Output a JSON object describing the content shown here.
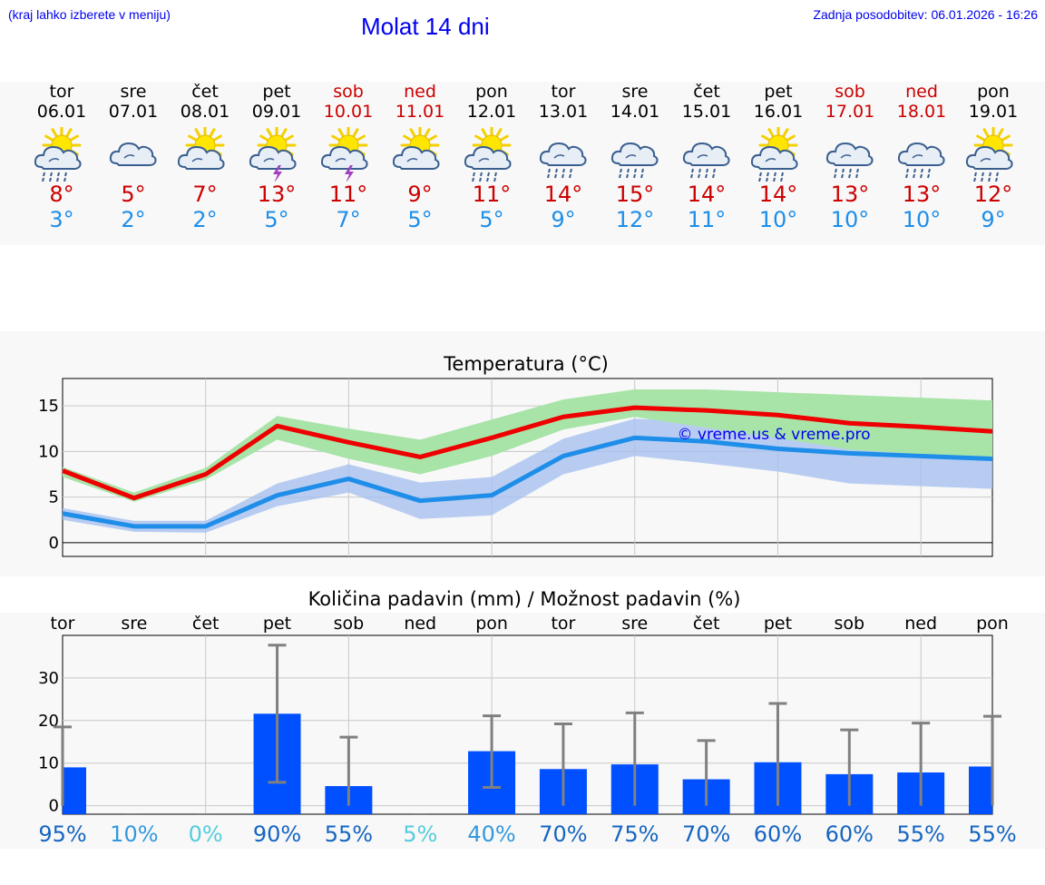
{
  "header": {
    "hint": "(kraj lahko izberete v meniju)",
    "title": "Molat 14 dni",
    "updated": "Zadnja posodobitev: 06.01.2026 - 16:26"
  },
  "days": [
    {
      "name": "tor",
      "date": "06.01",
      "weekend": false,
      "icon": "sun-cloud-rain-icon",
      "max": "8°",
      "min": "3°"
    },
    {
      "name": "sre",
      "date": "07.01",
      "weekend": false,
      "icon": "cloud-icon",
      "max": "5°",
      "min": "2°"
    },
    {
      "name": "čet",
      "date": "08.01",
      "weekend": false,
      "icon": "sun-cloud-icon",
      "max": "7°",
      "min": "2°"
    },
    {
      "name": "pet",
      "date": "09.01",
      "weekend": false,
      "icon": "sun-cloud-thunder-icon",
      "max": "13°",
      "min": "5°"
    },
    {
      "name": "sob",
      "date": "10.01",
      "weekend": true,
      "icon": "sun-cloud-thunder-icon",
      "max": "11°",
      "min": "7°"
    },
    {
      "name": "ned",
      "date": "11.01",
      "weekend": true,
      "icon": "sun-cloud-icon",
      "max": "9°",
      "min": "5°"
    },
    {
      "name": "pon",
      "date": "12.01",
      "weekend": false,
      "icon": "sun-cloud-rain-icon",
      "max": "11°",
      "min": "5°"
    },
    {
      "name": "tor",
      "date": "13.01",
      "weekend": false,
      "icon": "cloud-rain-icon",
      "max": "14°",
      "min": "9°"
    },
    {
      "name": "sre",
      "date": "14.01",
      "weekend": false,
      "icon": "cloud-rain-icon",
      "max": "15°",
      "min": "12°"
    },
    {
      "name": "čet",
      "date": "15.01",
      "weekend": false,
      "icon": "cloud-rain-icon",
      "max": "14°",
      "min": "11°"
    },
    {
      "name": "pet",
      "date": "16.01",
      "weekend": false,
      "icon": "sun-cloud-rain-icon",
      "max": "14°",
      "min": "10°"
    },
    {
      "name": "sob",
      "date": "17.01",
      "weekend": true,
      "icon": "cloud-rain-icon",
      "max": "13°",
      "min": "10°"
    },
    {
      "name": "ned",
      "date": "18.01",
      "weekend": true,
      "icon": "cloud-rain-icon",
      "max": "13°",
      "min": "10°"
    },
    {
      "name": "pon",
      "date": "19.01",
      "weekend": false,
      "icon": "sun-cloud-rain-icon",
      "max": "12°",
      "min": "9°"
    }
  ],
  "colors": {
    "max": "#ee0000",
    "min": "#1e8ee8",
    "max_band": "#a8e4a8",
    "min_band": "#a8c0f0",
    "bar": "#0050ff",
    "errbar": "#808080"
  },
  "chart_data": [
    {
      "type": "line",
      "title": "Temperatura (°C)",
      "watermark": "© vreme.us & vreme.pro",
      "ylim": [
        -1.5,
        18
      ],
      "yticks": [
        0,
        5,
        10,
        15
      ],
      "x": [
        0,
        1,
        2,
        3,
        4,
        5,
        6,
        7,
        8,
        9,
        10,
        11,
        12,
        13
      ],
      "series": [
        {
          "name": "max",
          "values": [
            7.9,
            4.9,
            7.5,
            12.8,
            11.0,
            9.4,
            11.5,
            13.8,
            14.8,
            14.5,
            14.0,
            13.1,
            12.7,
            12.2
          ],
          "band_low": [
            7.2,
            4.5,
            6.9,
            11.3,
            9.2,
            7.5,
            9.5,
            12.4,
            13.8,
            12.6,
            11.5,
            10.2,
            9.7,
            9.2
          ],
          "band_high": [
            8.3,
            5.5,
            8.2,
            13.9,
            12.5,
            11.3,
            13.5,
            15.7,
            16.8,
            16.8,
            16.5,
            16.2,
            15.9,
            15.6
          ]
        },
        {
          "name": "min",
          "values": [
            3.2,
            1.8,
            1.8,
            5.2,
            7.0,
            4.6,
            5.2,
            9.5,
            11.5,
            11.1,
            10.3,
            9.8,
            9.5,
            9.2
          ],
          "band_low": [
            2.5,
            1.2,
            1.1,
            4.0,
            5.5,
            2.6,
            3.0,
            7.5,
            9.5,
            8.7,
            7.8,
            6.5,
            6.2,
            5.9
          ],
          "band_high": [
            3.8,
            2.4,
            2.4,
            6.5,
            8.6,
            6.6,
            7.2,
            11.4,
            13.6,
            13.3,
            12.8,
            12.5,
            12.2,
            12.0
          ]
        }
      ]
    },
    {
      "type": "bar",
      "title": "Količina padavin (mm) / Možnost padavin (%)",
      "ylim": [
        -2,
        40
      ],
      "yticks": [
        0,
        10,
        20,
        30
      ],
      "categories": [
        "tor",
        "sre",
        "čet",
        "pet",
        "sob",
        "ned",
        "pon",
        "tor",
        "sre",
        "čet",
        "pet",
        "sob",
        "ned",
        "pon"
      ],
      "values": [
        9.0,
        0,
        0,
        21.6,
        4.6,
        0,
        12.8,
        8.6,
        9.7,
        6.2,
        10.2,
        7.4,
        7.8,
        9.2
      ],
      "err_low": [
        0,
        0,
        0,
        5.5,
        0,
        0,
        4.3,
        0,
        0,
        0,
        0,
        0,
        0,
        0
      ],
      "err_high": [
        18.5,
        0,
        0,
        37.7,
        16.1,
        0,
        21.1,
        19.2,
        21.8,
        15.3,
        24.0,
        17.8,
        19.4,
        21.0
      ],
      "probabilities": [
        "95%",
        "10%",
        "0%",
        "90%",
        "55%",
        "5%",
        "40%",
        "70%",
        "75%",
        "70%",
        "60%",
        "60%",
        "55%",
        "55%"
      ],
      "prob_colors": [
        "#1565c0",
        "#3399dd",
        "#55ccdd",
        "#1565c0",
        "#1565c0",
        "#55ccdd",
        "#3399dd",
        "#1565c0",
        "#1565c0",
        "#1565c0",
        "#1565c0",
        "#1565c0",
        "#1565c0",
        "#1565c0"
      ]
    }
  ]
}
